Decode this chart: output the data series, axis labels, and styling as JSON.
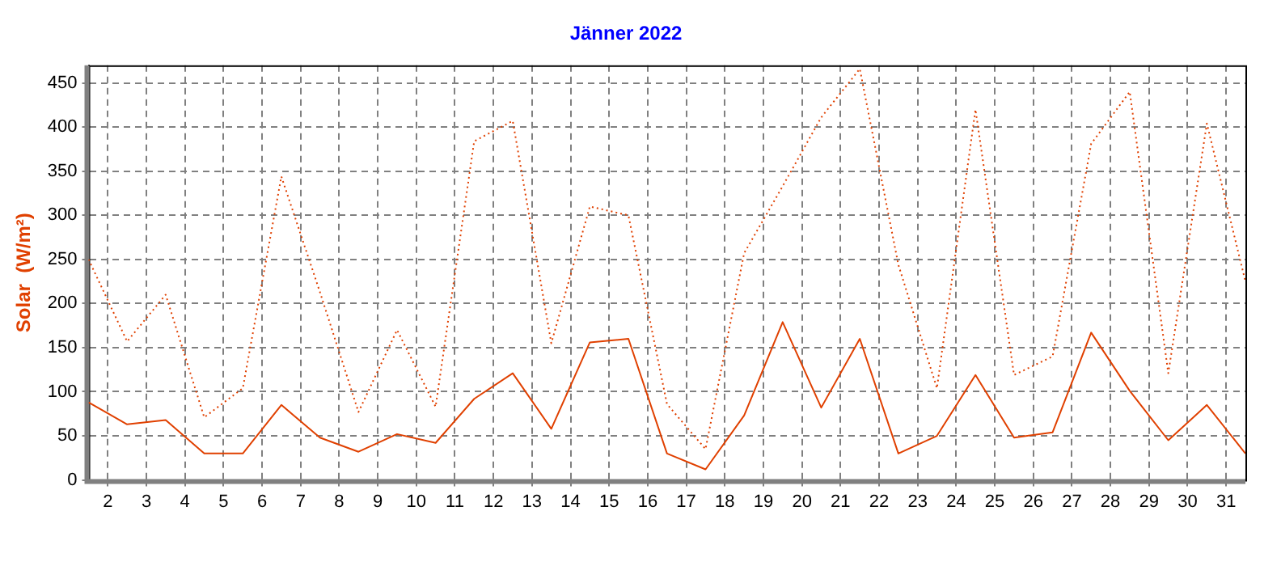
{
  "chart_data": {
    "type": "line",
    "title": "Jänner 2022",
    "ylabel": "Solar  (W/m²)",
    "x": [
      1.5,
      2.5,
      3.5,
      4.5,
      5.5,
      6.5,
      7.5,
      8.5,
      9.5,
      10.5,
      11.5,
      12.5,
      13.5,
      14.5,
      15.5,
      16.5,
      17.5,
      18.5,
      19.5,
      20.5,
      21.5,
      22.5,
      23.5,
      24.5,
      25.5,
      26.5,
      27.5,
      28.5,
      29.5,
      30.5,
      31.5
    ],
    "xlim": [
      1.5,
      31.5
    ],
    "xticks": [
      2,
      3,
      4,
      5,
      6,
      7,
      8,
      9,
      10,
      11,
      12,
      13,
      14,
      15,
      16,
      17,
      18,
      19,
      20,
      21,
      22,
      23,
      24,
      25,
      26,
      27,
      28,
      29,
      30,
      31
    ],
    "ylim": [
      0,
      470
    ],
    "yticks": [
      0,
      50,
      100,
      150,
      200,
      250,
      300,
      350,
      400,
      450
    ],
    "grid": true,
    "legend": false,
    "marker": "none",
    "series": [
      {
        "color": "#e04000",
        "line_style": "dotted",
        "values": [
          250,
          157,
          210,
          71,
          104,
          344,
          213,
          77,
          170,
          83,
          384,
          407,
          155,
          310,
          300,
          86,
          35,
          257,
          333,
          411,
          466,
          244,
          104,
          420,
          119,
          140,
          381,
          440,
          121,
          404,
          225
        ]
      },
      {
        "color": "#e04000",
        "line_style": "solid",
        "values": [
          88,
          63,
          68,
          30,
          30,
          85,
          48,
          32,
          52,
          42,
          92,
          121,
          58,
          156,
          160,
          30,
          12,
          73,
          179,
          82,
          160,
          30,
          50,
          119,
          48,
          54,
          167,
          101,
          45,
          85,
          30
        ]
      }
    ]
  }
}
